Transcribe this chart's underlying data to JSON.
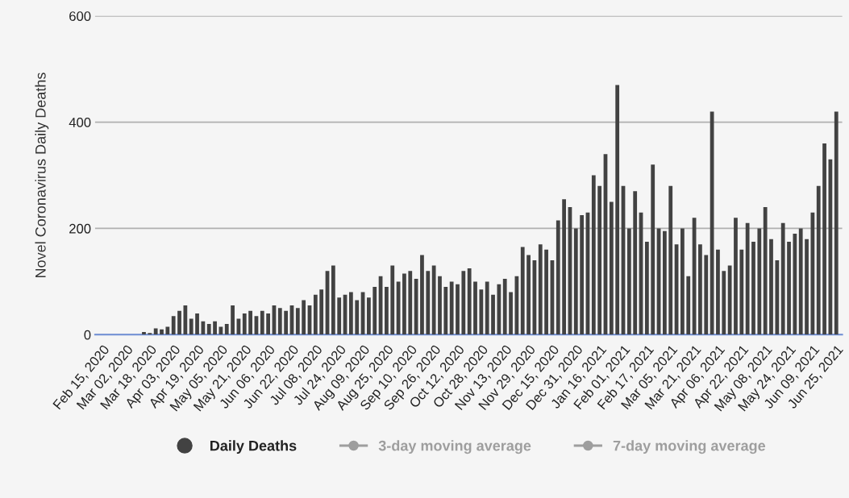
{
  "chart_data": {
    "type": "bar",
    "ylabel": "Novel Coronavirus Daily Deaths",
    "x": [
      "2020-02-15",
      "2020-02-19",
      "2020-02-23",
      "2020-02-27",
      "2020-03-02",
      "2020-03-06",
      "2020-03-10",
      "2020-03-14",
      "2020-03-18",
      "2020-03-22",
      "2020-03-26",
      "2020-03-30",
      "2020-04-03",
      "2020-04-07",
      "2020-04-11",
      "2020-04-15",
      "2020-04-19",
      "2020-04-23",
      "2020-04-27",
      "2020-05-01",
      "2020-05-05",
      "2020-05-09",
      "2020-05-13",
      "2020-05-17",
      "2020-05-21",
      "2020-05-25",
      "2020-05-29",
      "2020-06-02",
      "2020-06-06",
      "2020-06-10",
      "2020-06-14",
      "2020-06-18",
      "2020-06-22",
      "2020-06-26",
      "2020-06-30",
      "2020-07-04",
      "2020-07-08",
      "2020-07-12",
      "2020-07-16",
      "2020-07-20",
      "2020-07-24",
      "2020-07-28",
      "2020-08-01",
      "2020-08-05",
      "2020-08-09",
      "2020-08-13",
      "2020-08-17",
      "2020-08-21",
      "2020-08-25",
      "2020-08-29",
      "2020-09-02",
      "2020-09-06",
      "2020-09-10",
      "2020-09-14",
      "2020-09-18",
      "2020-09-22",
      "2020-09-26",
      "2020-09-30",
      "2020-10-04",
      "2020-10-08",
      "2020-10-12",
      "2020-10-16",
      "2020-10-20",
      "2020-10-24",
      "2020-10-28",
      "2020-11-01",
      "2020-11-05",
      "2020-11-09",
      "2020-11-13",
      "2020-11-17",
      "2020-11-21",
      "2020-11-25",
      "2020-11-29",
      "2020-12-03",
      "2020-12-07",
      "2020-12-11",
      "2020-12-15",
      "2020-12-19",
      "2020-12-23",
      "2020-12-27",
      "2020-12-31",
      "2021-01-04",
      "2021-01-08",
      "2021-01-12",
      "2021-01-16",
      "2021-01-20",
      "2021-01-24",
      "2021-01-28",
      "2021-02-01",
      "2021-02-05",
      "2021-02-09",
      "2021-02-13",
      "2021-02-17",
      "2021-02-21",
      "2021-02-25",
      "2021-03-01",
      "2021-03-05",
      "2021-03-09",
      "2021-03-13",
      "2021-03-17",
      "2021-03-21",
      "2021-03-25",
      "2021-03-29",
      "2021-04-02",
      "2021-04-06",
      "2021-04-10",
      "2021-04-14",
      "2021-04-18",
      "2021-04-22",
      "2021-04-26",
      "2021-04-30",
      "2021-05-04",
      "2021-05-08",
      "2021-05-12",
      "2021-05-16",
      "2021-05-20",
      "2021-05-24",
      "2021-05-28",
      "2021-06-01",
      "2021-06-05",
      "2021-06-09",
      "2021-06-13",
      "2021-06-17",
      "2021-06-21",
      "2021-06-25"
    ],
    "series": [
      {
        "name": "Daily Deaths",
        "color": "#424242",
        "values": [
          0,
          0,
          0,
          0,
          0,
          0,
          0,
          5,
          3,
          12,
          10,
          15,
          35,
          45,
          55,
          30,
          40,
          25,
          20,
          25,
          15,
          20,
          55,
          30,
          40,
          45,
          35,
          45,
          40,
          55,
          50,
          45,
          55,
          50,
          65,
          55,
          75,
          85,
          120,
          130,
          70,
          75,
          80,
          65,
          80,
          70,
          90,
          110,
          90,
          130,
          100,
          115,
          120,
          105,
          150,
          120,
          130,
          110,
          90,
          100,
          95,
          120,
          125,
          100,
          85,
          100,
          75,
          95,
          105,
          80,
          110,
          165,
          150,
          140,
          170,
          160,
          140,
          215,
          255,
          240,
          200,
          225,
          230,
          300,
          280,
          340,
          250,
          470,
          280,
          200,
          270,
          230,
          175,
          320,
          200,
          195,
          280,
          170,
          200,
          110,
          220,
          170,
          150,
          420,
          160,
          120,
          130,
          220,
          160,
          210,
          175,
          200,
          240,
          180,
          140,
          210,
          175,
          190,
          200,
          180,
          230,
          280,
          360,
          330,
          420
        ]
      },
      {
        "name": "3-day moving average",
        "type": "line",
        "color": "#9e9e9e",
        "values": [
          null,
          null,
          null,
          null,
          null,
          null,
          null,
          null,
          null,
          null,
          null,
          null,
          null,
          null,
          null,
          null,
          null,
          null,
          null,
          null,
          null,
          null,
          null,
          null,
          null,
          null,
          null,
          null,
          null,
          null,
          null,
          null,
          null,
          null,
          null,
          null,
          null,
          null,
          null,
          null,
          null,
          null,
          null,
          null,
          null,
          null,
          null,
          null,
          null,
          null,
          null,
          null,
          null,
          null,
          null,
          null,
          null,
          null,
          null,
          null,
          null,
          null,
          null,
          null,
          null,
          null,
          null,
          null,
          null,
          null,
          null,
          null,
          null,
          null,
          null,
          null,
          null,
          null,
          null,
          null,
          null,
          null,
          null,
          null,
          null,
          null,
          null,
          null,
          null,
          null,
          null,
          null,
          null,
          null,
          null,
          null,
          null,
          null,
          null,
          null,
          null,
          null,
          null,
          null,
          null,
          null,
          null,
          null,
          null,
          null,
          null,
          null,
          null,
          null,
          null,
          null,
          null,
          null,
          null,
          null,
          null,
          null,
          null,
          null,
          null
        ]
      },
      {
        "name": "7-day moving average",
        "type": "line",
        "color": "#9e9e9e",
        "values": [
          null,
          null,
          null,
          null,
          null,
          null,
          null,
          null,
          null,
          null,
          null,
          null,
          null,
          null,
          null,
          null,
          null,
          null,
          null,
          null,
          null,
          null,
          null,
          null,
          null,
          null,
          null,
          null,
          null,
          null,
          null,
          null,
          null,
          null,
          null,
          null,
          null,
          null,
          null,
          null,
          null,
          null,
          null,
          null,
          null,
          null,
          null,
          null,
          null,
          null,
          null,
          null,
          null,
          null,
          null,
          null,
          null,
          null,
          null,
          null,
          null,
          null,
          null,
          null,
          null,
          null,
          null,
          null,
          null,
          null,
          null,
          null,
          null,
          null,
          null,
          null,
          null,
          null,
          null,
          null,
          null,
          null,
          null,
          null,
          null,
          null,
          null,
          null,
          null,
          null,
          null,
          null,
          null,
          null,
          null,
          null,
          null,
          null,
          null,
          null,
          null,
          null,
          null,
          null,
          null,
          null,
          null,
          null,
          null,
          null,
          null,
          null,
          null,
          null,
          null,
          null,
          null,
          null,
          null,
          null,
          null,
          null,
          null,
          null,
          null
        ]
      }
    ],
    "xlim": [
      "2020-02-10",
      "2021-06-29"
    ],
    "xticks": [
      {
        "value": "2020-02-15",
        "label": "Feb 15, 2020"
      },
      {
        "value": "2020-03-02",
        "label": "Mar 02, 2020"
      },
      {
        "value": "2020-03-18",
        "label": "Mar 18, 2020"
      },
      {
        "value": "2020-04-03",
        "label": "Apr 03, 2020"
      },
      {
        "value": "2020-04-19",
        "label": "Apr 19, 2020"
      },
      {
        "value": "2020-05-05",
        "label": "May 05, 2020"
      },
      {
        "value": "2020-05-21",
        "label": "May 21, 2020"
      },
      {
        "value": "2020-06-06",
        "label": "Jun 06, 2020"
      },
      {
        "value": "2020-06-22",
        "label": "Jun 22, 2020"
      },
      {
        "value": "2020-07-08",
        "label": "Jul 08, 2020"
      },
      {
        "value": "2020-07-24",
        "label": "Jul 24, 2020"
      },
      {
        "value": "2020-08-09",
        "label": "Aug 09, 2020"
      },
      {
        "value": "2020-08-25",
        "label": "Aug 25, 2020"
      },
      {
        "value": "2020-09-10",
        "label": "Sep 10, 2020"
      },
      {
        "value": "2020-09-26",
        "label": "Sep 26, 2020"
      },
      {
        "value": "2020-10-12",
        "label": "Oct 12, 2020"
      },
      {
        "value": "2020-10-28",
        "label": "Oct 28, 2020"
      },
      {
        "value": "2020-11-13",
        "label": "Nov 13, 2020"
      },
      {
        "value": "2020-11-29",
        "label": "Nov 29, 2020"
      },
      {
        "value": "2020-12-15",
        "label": "Dec 15, 2020"
      },
      {
        "value": "2020-12-31",
        "label": "Dec 31, 2020"
      },
      {
        "value": "2021-01-16",
        "label": "Jan 16, 2021"
      },
      {
        "value": "2021-02-01",
        "label": "Feb 01, 2021"
      },
      {
        "value": "2021-02-17",
        "label": "Feb 17, 2021"
      },
      {
        "value": "2021-03-05",
        "label": "Mar 05, 2021"
      },
      {
        "value": "2021-03-21",
        "label": "Mar 21, 2021"
      },
      {
        "value": "2021-04-06",
        "label": "Apr 06, 2021"
      },
      {
        "value": "2021-04-22",
        "label": "Apr 22, 2021"
      },
      {
        "value": "2021-05-08",
        "label": "May 08, 2021"
      },
      {
        "value": "2021-05-24",
        "label": "May 24, 2021"
      },
      {
        "value": "2021-06-09",
        "label": "Jun 09, 2021"
      },
      {
        "value": "2021-06-25",
        "label": "Jun 25, 2021"
      }
    ],
    "ylim": [
      0,
      600
    ],
    "yticks": [
      0,
      200,
      400,
      600
    ],
    "grid": "y",
    "legend": "bottom",
    "marker": "circle"
  }
}
